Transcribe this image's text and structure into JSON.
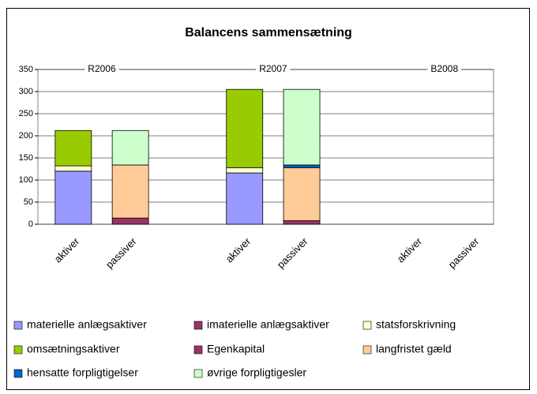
{
  "chart_data": {
    "type": "stacked_bar",
    "title": "Balancens sammensætning",
    "groups": [
      "R2006",
      "R2007",
      "B2008"
    ],
    "categories": [
      "aktiver",
      "passiver",
      null,
      "aktiver",
      "passiver",
      null,
      "aktiver",
      "passiver"
    ],
    "series": [
      {
        "name": "materielle anlægsaktiver",
        "color": "#9999ff",
        "values": [
          120,
          null,
          null,
          116,
          null,
          null,
          null,
          null
        ]
      },
      {
        "name": "imaterielle anlægsaktiver",
        "color": "#993366",
        "values": [
          0,
          null,
          null,
          0,
          null,
          null,
          null,
          null
        ]
      },
      {
        "name": "statsforskrivning",
        "color": "#ffffcc",
        "values": [
          12,
          null,
          null,
          12,
          null,
          null,
          null,
          null
        ]
      },
      {
        "name": "omsætningsaktiver",
        "color": "#99cc00",
        "values": [
          80,
          null,
          null,
          177,
          null,
          null,
          null,
          null
        ]
      },
      {
        "name": "Egenkapital",
        "color": "#993366",
        "values": [
          null,
          14,
          null,
          null,
          8,
          null,
          null,
          null
        ]
      },
      {
        "name": "langfristet gæld",
        "color": "#ffcc99",
        "values": [
          null,
          120,
          null,
          null,
          120,
          null,
          null,
          null
        ]
      },
      {
        "name": "hensatte forpligtigelser",
        "color": "#0066cc",
        "values": [
          null,
          0,
          null,
          null,
          6,
          null,
          null,
          null
        ]
      },
      {
        "name": "øvrige forpligtigesler",
        "color": "#ccffcc",
        "values": [
          null,
          78,
          null,
          null,
          171,
          null,
          null,
          null
        ]
      }
    ],
    "ylim": [
      0,
      350
    ],
    "yticks": [
      0,
      50,
      100,
      150,
      200,
      250,
      300,
      350
    ],
    "grid": true,
    "legend": "bottom"
  }
}
